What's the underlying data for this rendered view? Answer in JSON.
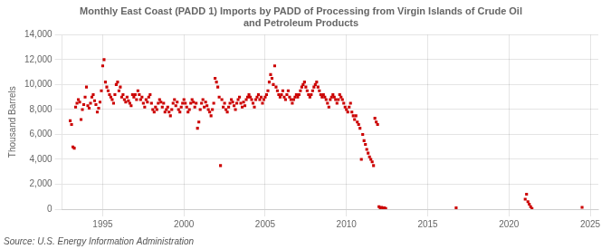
{
  "chart_data": {
    "type": "scatter",
    "title": "Monthly East Coast (PADD 1) Imports by PADD of Processing from Virgin Islands of Crude Oil\nand Petroleum Products",
    "ylabel": "Thousand Barrels",
    "source": "Source: U.S. Energy Information Administration",
    "color": "#CC0000",
    "marker": "square",
    "grid": true,
    "xlim": [
      1992.5,
      2025.5
    ],
    "xticks": [
      1995,
      2000,
      2005,
      2010,
      2015,
      2020,
      2025
    ],
    "ylim": [
      0,
      14000
    ],
    "yticks": [
      0,
      {
        "value": 2000,
        "label": "2,000"
      },
      {
        "value": 4000,
        "label": "4,000"
      },
      {
        "value": 6000,
        "label": "6,000"
      },
      {
        "value": 8000,
        "label": "8,000"
      },
      {
        "value": 10000,
        "label": "10,000"
      },
      {
        "value": 12000,
        "label": "12,000"
      },
      {
        "value": 14000,
        "label": "14,000"
      }
    ],
    "x": [
      1993.0,
      1993.083,
      1993.167,
      1993.25,
      1993.333,
      1993.417,
      1993.5,
      1993.583,
      1993.667,
      1993.75,
      1993.833,
      1993.917,
      1994.0,
      1994.083,
      1994.167,
      1994.25,
      1994.333,
      1994.417,
      1994.5,
      1994.583,
      1994.667,
      1994.75,
      1994.833,
      1994.917,
      1995.0,
      1995.083,
      1995.167,
      1995.25,
      1995.333,
      1995.417,
      1995.5,
      1995.583,
      1995.667,
      1995.75,
      1995.833,
      1995.917,
      1996.0,
      1996.083,
      1996.167,
      1996.25,
      1996.333,
      1996.417,
      1996.5,
      1996.583,
      1996.667,
      1996.75,
      1996.833,
      1996.917,
      1997.0,
      1997.083,
      1997.167,
      1997.25,
      1997.333,
      1997.417,
      1997.5,
      1997.583,
      1997.667,
      1997.75,
      1997.833,
      1997.917,
      1998.0,
      1998.083,
      1998.167,
      1998.25,
      1998.333,
      1998.417,
      1998.5,
      1998.583,
      1998.667,
      1998.75,
      1998.833,
      1998.917,
      1999.0,
      1999.083,
      1999.167,
      1999.25,
      1999.333,
      1999.417,
      1999.5,
      1999.583,
      1999.667,
      1999.75,
      1999.833,
      1999.917,
      2000.0,
      2000.083,
      2000.167,
      2000.25,
      2000.333,
      2000.417,
      2000.5,
      2000.583,
      2000.667,
      2000.75,
      2000.833,
      2000.917,
      2001.0,
      2001.083,
      2001.167,
      2001.25,
      2001.333,
      2001.417,
      2001.5,
      2001.583,
      2001.667,
      2001.75,
      2001.833,
      2001.917,
      2002.0,
      2002.083,
      2002.167,
      2002.25,
      2002.333,
      2002.417,
      2002.5,
      2002.583,
      2002.667,
      2002.75,
      2002.833,
      2002.917,
      2003.0,
      2003.083,
      2003.167,
      2003.25,
      2003.333,
      2003.417,
      2003.5,
      2003.583,
      2003.667,
      2003.75,
      2003.833,
      2003.917,
      2004.0,
      2004.083,
      2004.167,
      2004.25,
      2004.333,
      2004.417,
      2004.5,
      2004.583,
      2004.667,
      2004.75,
      2004.833,
      2004.917,
      2005.0,
      2005.083,
      2005.167,
      2005.25,
      2005.333,
      2005.417,
      2005.5,
      2005.583,
      2005.667,
      2005.75,
      2005.833,
      2005.917,
      2006.0,
      2006.083,
      2006.167,
      2006.25,
      2006.333,
      2006.417,
      2006.5,
      2006.583,
      2006.667,
      2006.75,
      2006.833,
      2006.917,
      2007.0,
      2007.083,
      2007.167,
      2007.25,
      2007.333,
      2007.417,
      2007.5,
      2007.583,
      2007.667,
      2007.75,
      2007.833,
      2007.917,
      2008.0,
      2008.083,
      2008.167,
      2008.25,
      2008.333,
      2008.417,
      2008.5,
      2008.583,
      2008.667,
      2008.75,
      2008.833,
      2008.917,
      2009.0,
      2009.083,
      2009.167,
      2009.25,
      2009.333,
      2009.417,
      2009.5,
      2009.583,
      2009.667,
      2009.75,
      2009.833,
      2009.917,
      2010.0,
      2010.083,
      2010.167,
      2010.25,
      2010.333,
      2010.417,
      2010.5,
      2010.583,
      2010.667,
      2010.75,
      2010.833,
      2010.917,
      2011.0,
      2011.083,
      2011.167,
      2011.25,
      2011.333,
      2011.417,
      2011.5,
      2011.583,
      2011.667,
      2011.75,
      2011.833,
      2011.917,
      2012.0,
      2012.083,
      2012.167,
      2012.25,
      2012.333,
      2012.417,
      2016.75,
      2021.0,
      2021.083,
      2021.167,
      2021.25,
      2021.333,
      2021.417,
      2024.5
    ],
    "values": [
      7100,
      6800,
      5000,
      4900,
      8200,
      8500,
      8800,
      8600,
      7200,
      8000,
      8400,
      9000,
      9800,
      8300,
      8100,
      8500,
      9000,
      9200,
      8700,
      8400,
      7800,
      8100,
      8600,
      9500,
      11500,
      12000,
      10200,
      9800,
      9500,
      9200,
      9000,
      8800,
      8500,
      9200,
      10000,
      10200,
      9500,
      9800,
      9000,
      9200,
      8800,
      8600,
      9000,
      8700,
      8500,
      8300,
      9200,
      9000,
      9200,
      8800,
      9500,
      9200,
      8800,
      9000,
      8500,
      8200,
      8800,
      8600,
      9000,
      9200,
      8500,
      8000,
      7800,
      8200,
      8000,
      8500,
      8800,
      8600,
      8200,
      8500,
      7800,
      8000,
      8200,
      7800,
      7500,
      8000,
      8500,
      8800,
      8300,
      8600,
      8000,
      7800,
      8200,
      8500,
      8800,
      8500,
      8200,
      7800,
      8000,
      8500,
      8800,
      8600,
      8200,
      8500,
      6500,
      7000,
      8000,
      8500,
      8800,
      8200,
      8600,
      8300,
      8000,
      7800,
      7500,
      8000,
      8500,
      10500,
      10200,
      9800,
      9000,
      3500,
      8800,
      8200,
      8500,
      8000,
      7800,
      8200,
      8500,
      8800,
      8600,
      8300,
      8000,
      8500,
      8800,
      9000,
      8500,
      8200,
      8600,
      8300,
      8800,
      9000,
      9200,
      9000,
      8800,
      8500,
      8200,
      8800,
      9000,
      9200,
      8800,
      9000,
      8500,
      8800,
      9000,
      9200,
      9500,
      10200,
      10800,
      10500,
      10000,
      11500,
      9800,
      9500,
      9200,
      9000,
      9200,
      9500,
      9000,
      8800,
      9200,
      9500,
      9000,
      8800,
      8500,
      8800,
      9000,
      9200,
      9000,
      9200,
      9500,
      9800,
      10000,
      10200,
      9800,
      9500,
      9200,
      9000,
      9200,
      9500,
      9800,
      10000,
      10200,
      9800,
      9500,
      9200,
      9000,
      9200,
      9000,
      8800,
      8500,
      8200,
      8800,
      9000,
      9200,
      9000,
      8800,
      8500,
      8800,
      9200,
      9000,
      8800,
      8500,
      8200,
      8000,
      7800,
      8200,
      8500,
      7800,
      7500,
      7200,
      7500,
      7000,
      6800,
      6500,
      4000,
      6000,
      5500,
      5200,
      4800,
      4500,
      4200,
      4000,
      3800,
      3500,
      7300,
      7000,
      6800,
      200,
      100,
      150,
      50,
      100,
      50,
      100,
      800,
      1200,
      600,
      400,
      200,
      50,
      150
    ]
  }
}
